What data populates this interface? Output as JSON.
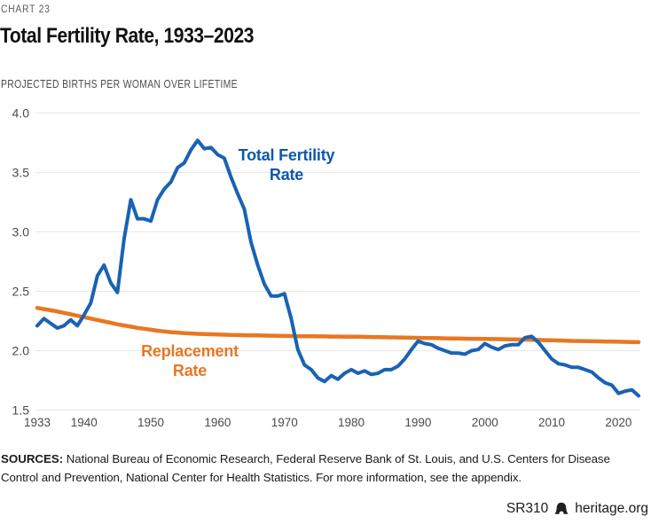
{
  "page": {
    "kicker": "CHART 23",
    "title": "Total Fertility Rate, 1933–2023",
    "subtitle": "PROJECTED BIRTHS PER WOMAN OVER LIFETIME"
  },
  "chart_data": {
    "type": "line",
    "title": "Total Fertility Rate, 1933–2023",
    "ylabel": "Projected births per woman over lifetime",
    "x_start": 1933,
    "x_end": 2023,
    "x_ticks": [
      1933,
      1940,
      1950,
      1960,
      1970,
      1980,
      1990,
      2000,
      2010,
      2020
    ],
    "y_ticks": [
      4.0,
      3.5,
      3.0,
      2.5,
      2.0,
      1.5
    ],
    "ylim": [
      1.5,
      4.0
    ],
    "grid": "horizontal",
    "gridline_color": "#e8e8e8",
    "series": [
      {
        "name": "Total Fertility Rate",
        "label_lines": [
          "Total Fertility",
          "Rate"
        ],
        "color": "#1a62b3",
        "stroke_width": 4,
        "values": [
          2.21,
          2.27,
          2.23,
          2.19,
          2.21,
          2.26,
          2.21,
          2.3,
          2.4,
          2.63,
          2.72,
          2.57,
          2.49,
          2.94,
          3.27,
          3.11,
          3.11,
          3.09,
          3.27,
          3.36,
          3.42,
          3.54,
          3.58,
          3.69,
          3.77,
          3.7,
          3.71,
          3.65,
          3.62,
          3.46,
          3.32,
          3.19,
          2.91,
          2.72,
          2.56,
          2.46,
          2.46,
          2.48,
          2.27,
          2.01,
          1.88,
          1.84,
          1.77,
          1.74,
          1.79,
          1.76,
          1.81,
          1.84,
          1.81,
          1.83,
          1.8,
          1.81,
          1.84,
          1.84,
          1.87,
          1.93,
          2.01,
          2.08,
          2.06,
          2.05,
          2.02,
          2.0,
          1.98,
          1.98,
          1.97,
          2.0,
          2.01,
          2.06,
          2.03,
          2.01,
          2.04,
          2.05,
          2.05,
          2.11,
          2.12,
          2.07,
          2.0,
          1.93,
          1.89,
          1.88,
          1.86,
          1.86,
          1.84,
          1.82,
          1.77,
          1.73,
          1.71,
          1.64,
          1.66,
          1.67,
          1.62
        ]
      },
      {
        "name": "Replacement Rate",
        "label_lines": [
          "Replacement",
          "Rate"
        ],
        "color": "#e87722",
        "stroke_width": 4.5,
        "values": [
          2.36,
          2.35,
          2.34,
          2.33,
          2.318,
          2.306,
          2.294,
          2.282,
          2.27,
          2.258,
          2.246,
          2.234,
          2.222,
          2.212,
          2.202,
          2.192,
          2.184,
          2.176,
          2.168,
          2.162,
          2.156,
          2.152,
          2.148,
          2.145,
          2.142,
          2.14,
          2.138,
          2.136,
          2.134,
          2.132,
          2.131,
          2.13,
          2.129,
          2.128,
          2.127,
          2.126,
          2.125,
          2.124,
          2.123,
          2.122,
          2.121,
          2.121,
          2.12,
          2.12,
          2.119,
          2.119,
          2.118,
          2.118,
          2.117,
          2.116,
          2.115,
          2.114,
          2.113,
          2.112,
          2.111,
          2.11,
          2.109,
          2.108,
          2.107,
          2.106,
          2.105,
          2.104,
          2.103,
          2.102,
          2.101,
          2.1,
          2.1,
          2.099,
          2.098,
          2.097,
          2.096,
          2.095,
          2.094,
          2.093,
          2.092,
          2.09,
          2.089,
          2.088,
          2.086,
          2.084,
          2.082,
          2.081,
          2.08,
          2.079,
          2.078,
          2.077,
          2.076,
          2.075,
          2.074,
          2.073,
          2.072
        ]
      }
    ]
  },
  "sources": {
    "label": "SOURCES:",
    "lines": [
      "National Bureau of Economic Research, Federal Reserve Bank of St. Louis, and U.S. Centers for Disease",
      "Control and Prevention, National Center for Health Statistics. For more information, see the appendix."
    ]
  },
  "footer": {
    "report_id": "SR310",
    "icon": "liberty-bell",
    "site": "heritage.org"
  }
}
